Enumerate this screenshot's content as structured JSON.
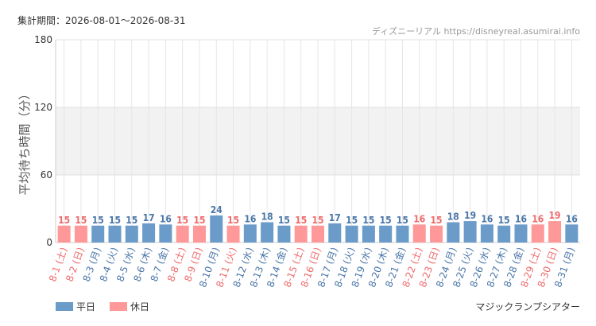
{
  "header": {
    "period": "集計期間：2026-08-01～2026-08-31",
    "source": "ディズニーリアル https://disneyreal.asumirai.info"
  },
  "attraction": "マジックランプシアター",
  "colors": {
    "weekday": "#6a9bc9",
    "holiday": "#ff9899",
    "weekday_text": "#4a76a8",
    "holiday_text": "#ef6a6b",
    "band": "#f2f2f2",
    "grid": "#e6e6e6"
  },
  "chart_data": {
    "type": "bar",
    "title": "",
    "xlabel": "",
    "ylabel": "平均待ち時間（分）",
    "ylim": [
      0,
      180
    ],
    "yticks": [
      0,
      60,
      120,
      180
    ],
    "grid": true,
    "legend_position": "bottom-left",
    "legend": [
      {
        "name": "平日",
        "type": "weekday"
      },
      {
        "name": "休日",
        "type": "holiday"
      }
    ],
    "categories": [
      "8-1 (土)",
      "8-2 (日)",
      "8-3 (月)",
      "8-4 (火)",
      "8-5 (水)",
      "8-6 (木)",
      "8-7 (金)",
      "8-8 (土)",
      "8-9 (日)",
      "8-10 (月)",
      "8-11 (火)",
      "8-12 (水)",
      "8-13 (木)",
      "8-14 (金)",
      "8-15 (土)",
      "8-16 (日)",
      "8-17 (月)",
      "8-18 (火)",
      "8-19 (水)",
      "8-20 (木)",
      "8-21 (金)",
      "8-22 (土)",
      "8-23 (日)",
      "8-24 (月)",
      "8-25 (火)",
      "8-26 (水)",
      "8-27 (木)",
      "8-28 (金)",
      "8-29 (土)",
      "8-30 (日)",
      "8-31 (月)"
    ],
    "values": [
      15,
      15,
      15,
      15,
      15,
      17,
      16,
      15,
      15,
      24,
      15,
      16,
      18,
      15,
      15,
      15,
      17,
      15,
      15,
      15,
      15,
      16,
      15,
      18,
      19,
      16,
      15,
      16,
      16,
      19,
      16
    ],
    "day_types": [
      "holiday",
      "holiday",
      "weekday",
      "weekday",
      "weekday",
      "weekday",
      "weekday",
      "holiday",
      "holiday",
      "weekday",
      "holiday",
      "weekday",
      "weekday",
      "weekday",
      "holiday",
      "holiday",
      "weekday",
      "weekday",
      "weekday",
      "weekday",
      "weekday",
      "holiday",
      "holiday",
      "weekday",
      "weekday",
      "weekday",
      "weekday",
      "weekday",
      "holiday",
      "holiday",
      "weekday"
    ]
  }
}
